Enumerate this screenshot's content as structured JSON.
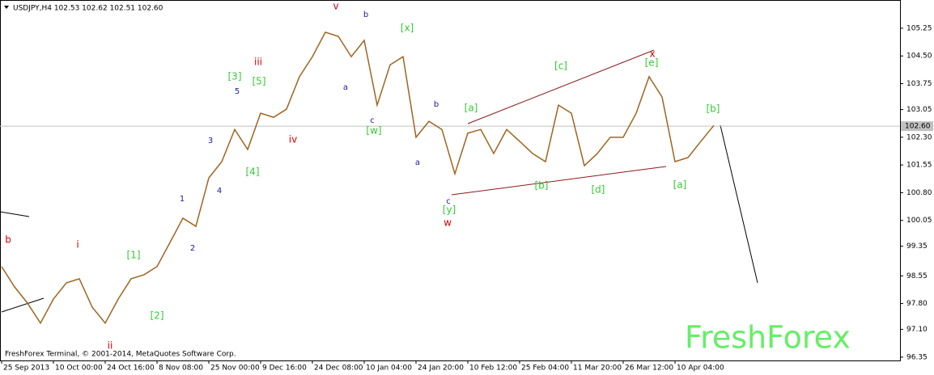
{
  "chart_data": {
    "type": "line",
    "title": "USDJPY,H4  102.53 102.62 102.51 102.60",
    "footer": "FreshForex Terminal, © 2001-2014, MetaQuotes Software Corp.",
    "watermark": "FreshForex",
    "categories": [
      "25 Sep 2013",
      null,
      null,
      null,
      "10 Oct 00:00",
      null,
      null,
      null,
      "24 Oct 16:00",
      null,
      null,
      null,
      "8 Nov 08:00",
      null,
      null,
      null,
      "25 Nov 00:00",
      null,
      null,
      null,
      "9 Dec 16:00",
      null,
      null,
      null,
      "24 Dec 08:00",
      null,
      null,
      null,
      "10 Jan 04:00",
      null,
      null,
      null,
      "24 Jan 20:00",
      null,
      null,
      null,
      "10 Feb 12:00",
      null,
      null,
      null,
      "25 Feb 04:00",
      null,
      null,
      null,
      "11 Mar 20:00",
      null,
      null,
      null,
      "26 Mar 12:00",
      null,
      null,
      null,
      "10 Apr 04:00",
      null,
      null,
      null
    ],
    "series": [
      {
        "color": "#a0641e",
        "values": [
          98.8,
          98.25,
          97.81,
          97.27,
          97.92,
          98.36,
          98.47,
          97.7,
          97.27,
          97.92,
          98.47,
          98.58,
          98.8,
          99.45,
          100.11,
          99.89,
          101.2,
          101.64,
          102.51,
          101.97,
          102.95,
          102.84,
          103.06,
          103.94,
          104.48,
          105.14,
          105.03,
          104.48,
          104.92,
          103.17,
          104.26,
          104.48,
          102.3,
          102.73,
          102.51,
          101.31,
          102.41,
          102.51,
          101.86,
          102.51,
          102.19,
          101.86,
          101.64,
          103.17,
          102.95,
          101.53,
          101.86,
          102.3,
          102.3,
          102.95,
          103.94,
          103.39,
          101.64,
          101.75,
          102.19,
          102.62
        ]
      }
    ],
    "current_price": {
      "value": 102.6,
      "label": "102.60"
    },
    "ylim": [
      96.26,
      105.97
    ],
    "yticks": [
      105.25,
      {
        "value": 104.5,
        "label": "104.50"
      },
      {
        "value": 103.75,
        "label": "103.75"
      },
      103.05,
      {
        "value": 102.3,
        "label": "102.30"
      },
      101.55,
      {
        "value": 100.8,
        "label": "100.80"
      },
      100.05,
      99.35,
      98.55,
      {
        "value": 97.8,
        "label": "97.80"
      },
      {
        "value": 97.1,
        "label": "97.10"
      },
      96.35
    ],
    "annotations": [
      {
        "text": "b",
        "color": "#e00000"
      },
      {
        "text": "i",
        "color": "#e00000"
      },
      {
        "text": "ii",
        "color": "#e00000"
      },
      {
        "text": "iii",
        "color": "#e00000"
      },
      {
        "text": "iv",
        "color": "#e00000"
      },
      {
        "text": "v",
        "color": "#e00000"
      },
      {
        "text": "w",
        "color": "#e00000"
      },
      {
        "text": "x",
        "color": "#e00000"
      },
      {
        "text": "[1]",
        "color": "#33cc33"
      },
      {
        "text": "[2]",
        "color": "#33cc33"
      },
      {
        "text": "[3]",
        "color": "#33cc33"
      },
      {
        "text": "[4]",
        "color": "#33cc33"
      },
      {
        "text": "[5]",
        "color": "#33cc33"
      },
      {
        "text": "[x]",
        "color": "#33cc33"
      },
      {
        "text": "[w]",
        "color": "#33cc33"
      },
      {
        "text": "[y]",
        "color": "#33cc33"
      },
      {
        "text": "[a]",
        "color": "#33cc33"
      },
      {
        "text": "[b]",
        "color": "#33cc33"
      },
      {
        "text": "[c]",
        "color": "#33cc33"
      },
      {
        "text": "[d]",
        "color": "#33cc33"
      },
      {
        "text": "[e]",
        "color": "#33cc33"
      },
      {
        "text": "[a]",
        "color": "#33cc33"
      },
      {
        "text": "[b]",
        "color": "#33cc33"
      },
      {
        "text": "1",
        "color": "#1a1aa0"
      },
      {
        "text": "2",
        "color": "#1a1aa0"
      },
      {
        "text": "3",
        "color": "#1a1aa0"
      },
      {
        "text": "4",
        "color": "#1a1aa0"
      },
      {
        "text": "5",
        "color": "#1a1aa0"
      },
      {
        "text": "a",
        "color": "#1a1aa0"
      },
      {
        "text": "b",
        "color": "#1a1aa0"
      },
      {
        "text": "c",
        "color": "#1a1aa0"
      },
      {
        "text": "a",
        "color": "#1a1aa0"
      },
      {
        "text": "b",
        "color": "#1a1aa0"
      },
      {
        "text": "c",
        "color": "#1a1aa0"
      }
    ]
  }
}
